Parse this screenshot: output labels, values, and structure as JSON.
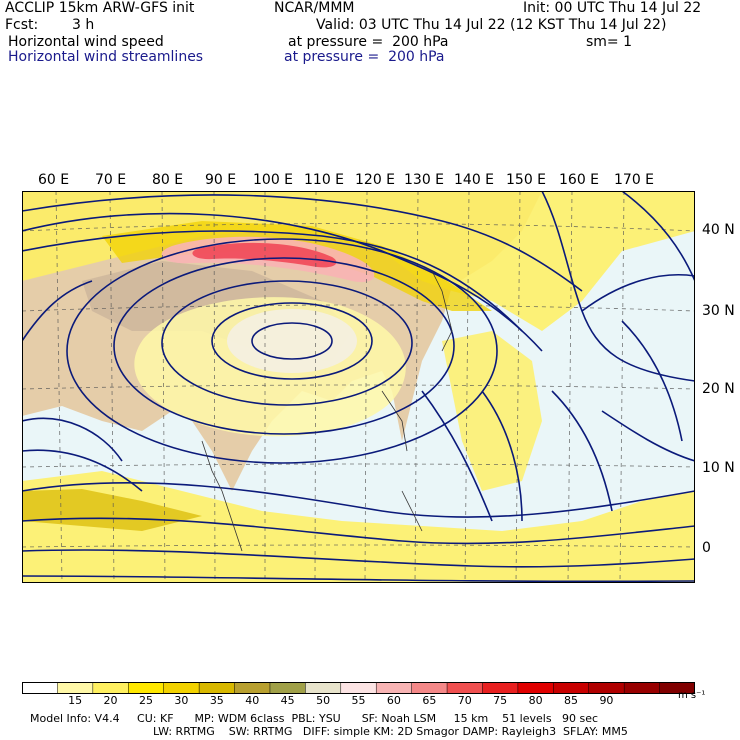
{
  "header": {
    "model": "ACCLIP 15km ARW-GFS init",
    "org": "NCAR/MMM",
    "init": "Init: 00 UTC Thu 14 Jul 22",
    "fcst_label": "Fcst:",
    "fcst_value": "3 h",
    "valid": "Valid: 03 UTC Thu 14 Jul 22 (12 KST Thu 14 Jul 22)",
    "field1_name": "Horizontal wind speed",
    "field1_level": "at pressure =  200 hPa",
    "sm": "sm= 1",
    "field2_name": "Horizontal wind streamlines",
    "field2_level": "at pressure =  200 hPa"
  },
  "map": {
    "lon_labels": [
      "60 E",
      "70 E",
      "80 E",
      "90 E",
      "100 E",
      "110 E",
      "120 E",
      "130 E",
      "140 E",
      "150 E",
      "160 E",
      "170 E"
    ],
    "lat_labels": [
      "40 N",
      "30 N",
      "20 N",
      "10 N",
      "0"
    ],
    "streamline_color": "#0b1a7a",
    "jet_max_color": "#f04858"
  },
  "colorbar": {
    "labels": [
      "15",
      "20",
      "25",
      "30",
      "35",
      "40",
      "45",
      "50",
      "55",
      "60",
      "65",
      "70",
      "75",
      "80",
      "85",
      "90"
    ],
    "unit": "m s⁻¹",
    "colors": [
      "#ffffff",
      "#fff8a8",
      "#fff060",
      "#ffe800",
      "#f2d200",
      "#d8b800",
      "#b8a030",
      "#a0a048",
      "#e8e4cc",
      "#fce4e4",
      "#f8b4b4",
      "#f48888",
      "#f05050",
      "#e82020",
      "#e00000",
      "#c80000",
      "#b00000",
      "#980000",
      "#800000"
    ]
  },
  "footer": {
    "line1": "Model Info: V4.4     CU: KF      MP: WDM 6class  PBL: YSU      SF: Noah LSM     15 km    51 levels   90 sec",
    "line2": "LW: RRTMG    SW: RRTMG   DIFF: simple KM: 2D Smagor DAMP: Rayleigh3  SFLAY: MM5"
  }
}
